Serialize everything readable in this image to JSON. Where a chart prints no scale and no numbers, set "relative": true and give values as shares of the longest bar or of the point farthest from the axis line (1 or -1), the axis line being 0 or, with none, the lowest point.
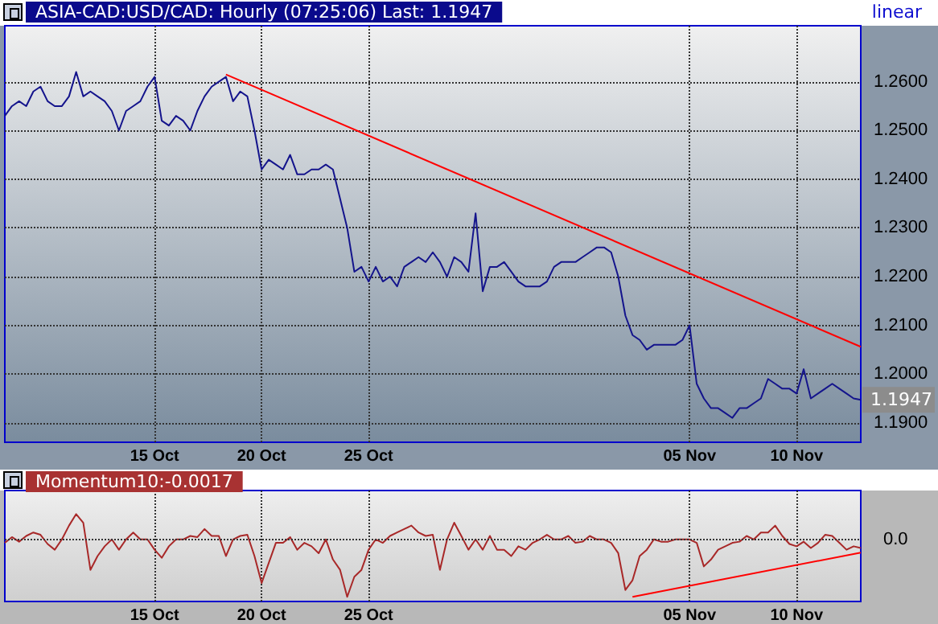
{
  "chart_data": [
    {
      "type": "line",
      "title": "ASIA-CAD:USD/CAD: Hourly (07:25:06) Last: 1.1947",
      "categories": [
        null,
        null,
        null,
        null,
        null,
        null,
        null,
        null,
        null,
        null,
        null,
        null,
        null,
        null,
        null,
        null,
        null,
        null,
        null,
        null,
        null,
        "15 Oct",
        null,
        null,
        null,
        null,
        null,
        null,
        null,
        null,
        null,
        null,
        null,
        null,
        null,
        null,
        "20 Oct",
        null,
        null,
        null,
        null,
        null,
        null,
        null,
        null,
        null,
        null,
        null,
        null,
        null,
        null,
        "25 Oct",
        null,
        null,
        null,
        null,
        null,
        null,
        null,
        null,
        null,
        null,
        null,
        null,
        null,
        null,
        null,
        null,
        null,
        null,
        null,
        null,
        null,
        null,
        null,
        null,
        null,
        null,
        null,
        null,
        null,
        null,
        null,
        null,
        null,
        null,
        null,
        null,
        null,
        null,
        null,
        null,
        null,
        null,
        null,
        null,
        "05 Nov",
        null,
        null,
        null,
        null,
        null,
        null,
        null,
        null,
        null,
        null,
        null,
        null,
        null,
        null,
        "10 Nov",
        null,
        null,
        null,
        null,
        null,
        null,
        null,
        null,
        null
      ],
      "series": [
        {
          "color": "#14148c",
          "values": [
            1.253,
            1.255,
            1.256,
            1.255,
            1.258,
            1.259,
            1.256,
            1.255,
            1.255,
            1.257,
            1.262,
            1.257,
            1.258,
            1.257,
            1.256,
            1.254,
            1.25,
            1.254,
            1.255,
            1.256,
            1.259,
            1.261,
            1.252,
            1.251,
            1.253,
            1.252,
            1.25,
            1.254,
            1.257,
            1.259,
            1.26,
            1.261,
            1.256,
            1.258,
            1.257,
            1.25,
            1.242,
            1.244,
            1.243,
            1.242,
            1.245,
            1.241,
            1.241,
            1.242,
            1.242,
            1.243,
            1.242,
            1.236,
            1.23,
            1.221,
            1.222,
            1.219,
            1.222,
            1.219,
            1.22,
            1.218,
            1.222,
            1.223,
            1.224,
            1.223,
            1.225,
            1.223,
            1.22,
            1.224,
            1.223,
            1.221,
            1.233,
            1.217,
            1.222,
            1.222,
            1.223,
            1.221,
            1.219,
            1.218,
            1.218,
            1.218,
            1.219,
            1.222,
            1.223,
            1.223,
            1.223,
            1.224,
            1.225,
            1.226,
            1.226,
            1.225,
            1.22,
            1.212,
            1.208,
            1.207,
            1.205,
            1.206,
            1.206,
            1.206,
            1.206,
            1.207,
            1.21,
            1.198,
            1.195,
            1.193,
            1.193,
            1.192,
            1.191,
            1.193,
            1.193,
            1.194,
            1.195,
            1.199,
            1.198,
            1.197,
            1.197,
            1.196,
            1.201,
            1.195,
            1.196,
            1.197,
            1.198,
            1.197,
            1.196,
            1.195,
            1.1947
          ]
        },
        {
          "color": "#ff0000",
          "values": [
            null,
            null,
            null,
            null,
            null,
            null,
            null,
            null,
            null,
            null,
            null,
            null,
            null,
            null,
            null,
            null,
            null,
            null,
            null,
            null,
            null,
            null,
            null,
            null,
            null,
            null,
            null,
            null,
            null,
            null,
            null,
            1.2615,
            null,
            null,
            null,
            null,
            null,
            null,
            null,
            null,
            null,
            null,
            null,
            null,
            null,
            null,
            null,
            null,
            null,
            null,
            null,
            null,
            null,
            null,
            null,
            null,
            null,
            null,
            null,
            null,
            null,
            null,
            null,
            null,
            null,
            null,
            null,
            null,
            null,
            null,
            null,
            null,
            null,
            null,
            null,
            null,
            null,
            null,
            null,
            null,
            null,
            null,
            null,
            null,
            null,
            null,
            null,
            null,
            null,
            null,
            null,
            null,
            null,
            null,
            null,
            null,
            null,
            null,
            null,
            null,
            null,
            null,
            null,
            null,
            null,
            null,
            null,
            null,
            null,
            null,
            null,
            null,
            null,
            null,
            null,
            null,
            null,
            null,
            null,
            null,
            1.2056
          ]
        }
      ],
      "ylim": [
        1.186,
        1.2715
      ],
      "yticks": [
        {
          "value": 1.19,
          "label": "1.1900"
        },
        {
          "value": 1.2,
          "label": "1.2000"
        },
        {
          "value": 1.21,
          "label": "1.2100"
        },
        {
          "value": 1.22,
          "label": "1.2200"
        },
        {
          "value": 1.23,
          "label": "1.2300"
        },
        {
          "value": 1.24,
          "label": "1.2400"
        },
        {
          "value": 1.25,
          "label": "1.2500"
        },
        {
          "value": 1.26,
          "label": "1.2600"
        }
      ],
      "grid": true,
      "annotations": [
        "linear",
        "1.1947"
      ]
    },
    {
      "type": "line",
      "title": "Momentum10:-0.0017",
      "relative": true,
      "categories": [
        null,
        null,
        null,
        null,
        null,
        null,
        null,
        null,
        null,
        null,
        null,
        null,
        null,
        null,
        null,
        null,
        null,
        null,
        null,
        null,
        null,
        "15 Oct",
        null,
        null,
        null,
        null,
        null,
        null,
        null,
        null,
        null,
        null,
        null,
        null,
        null,
        null,
        "20 Oct",
        null,
        null,
        null,
        null,
        null,
        null,
        null,
        null,
        null,
        null,
        null,
        null,
        null,
        null,
        "25 Oct",
        null,
        null,
        null,
        null,
        null,
        null,
        null,
        null,
        null,
        null,
        null,
        null,
        null,
        null,
        null,
        null,
        null,
        null,
        null,
        null,
        null,
        null,
        null,
        null,
        null,
        null,
        null,
        null,
        null,
        null,
        null,
        null,
        null,
        null,
        null,
        null,
        null,
        null,
        null,
        null,
        null,
        null,
        null,
        null,
        "05 Nov",
        null,
        null,
        null,
        null,
        null,
        null,
        null,
        null,
        null,
        null,
        null,
        null,
        null,
        null,
        "10 Nov",
        null,
        null,
        null,
        null,
        null,
        null,
        null,
        null,
        null
      ],
      "series": [
        {
          "color": "#a82828",
          "values": [
            -0.06,
            0.04,
            -0.04,
            0.06,
            0.12,
            0.08,
            -0.08,
            -0.18,
            0,
            0.24,
            0.44,
            0.29,
            -0.53,
            -0.29,
            -0.12,
            0,
            -0.18,
            0,
            0.12,
            0,
            0,
            -0.18,
            -0.32,
            -0.12,
            0,
            0,
            0.06,
            0.04,
            0.18,
            0.06,
            0.06,
            -0.29,
            0,
            0.06,
            0.08,
            -0.29,
            -0.76,
            -0.41,
            -0.06,
            -0.06,
            0.04,
            -0.18,
            -0.06,
            -0.12,
            -0.24,
            0,
            -0.35,
            -0.53,
            -1,
            -0.65,
            -0.53,
            -0.18,
            0,
            -0.06,
            0.06,
            0.12,
            0.18,
            0.24,
            0.12,
            0.06,
            0.08,
            -0.53,
            0,
            0.29,
            0.06,
            -0.18,
            0,
            -0.18,
            0.06,
            -0.18,
            -0.18,
            -0.29,
            -0.12,
            -0.18,
            -0.06,
            0,
            0.08,
            0,
            0,
            0.06,
            -0.06,
            -0.04,
            0.06,
            0,
            0,
            -0.06,
            -0.24,
            -0.88,
            -0.71,
            -0.29,
            -0.18,
            0,
            -0.04,
            -0.04,
            0,
            0,
            0,
            -0.06,
            -0.47,
            -0.35,
            -0.18,
            -0.12,
            -0.06,
            -0.04,
            0.06,
            0,
            0.12,
            0.12,
            0.24,
            0.06,
            -0.08,
            -0.12,
            -0.04,
            -0.15,
            -0.06,
            0.08,
            0.06,
            -0.06,
            -0.18,
            -0.12,
            -0.15
          ]
        },
        {
          "color": "#ff0000",
          "values": [
            null,
            null,
            null,
            null,
            null,
            null,
            null,
            null,
            null,
            null,
            null,
            null,
            null,
            null,
            null,
            null,
            null,
            null,
            null,
            null,
            null,
            null,
            null,
            null,
            null,
            null,
            null,
            null,
            null,
            null,
            null,
            null,
            null,
            null,
            null,
            null,
            null,
            null,
            null,
            null,
            null,
            null,
            null,
            null,
            null,
            null,
            null,
            null,
            null,
            null,
            null,
            null,
            null,
            null,
            null,
            null,
            null,
            null,
            null,
            null,
            null,
            null,
            null,
            null,
            null,
            null,
            null,
            null,
            null,
            null,
            null,
            null,
            null,
            null,
            null,
            null,
            null,
            null,
            null,
            null,
            null,
            null,
            null,
            null,
            null,
            null,
            null,
            null,
            -1,
            null,
            null,
            null,
            null,
            null,
            null,
            null,
            null,
            null,
            null,
            null,
            null,
            null,
            null,
            null,
            null,
            null,
            null,
            null,
            null,
            null,
            null,
            null,
            null,
            null,
            null,
            null,
            null,
            null,
            null,
            null,
            -0.23
          ]
        }
      ],
      "grid": "x",
      "ref_lines": [
        {
          "axis": "y",
          "value": 0,
          "label": "0.0",
          "line_style": "dotted",
          "color": "#333333"
        }
      ]
    }
  ]
}
